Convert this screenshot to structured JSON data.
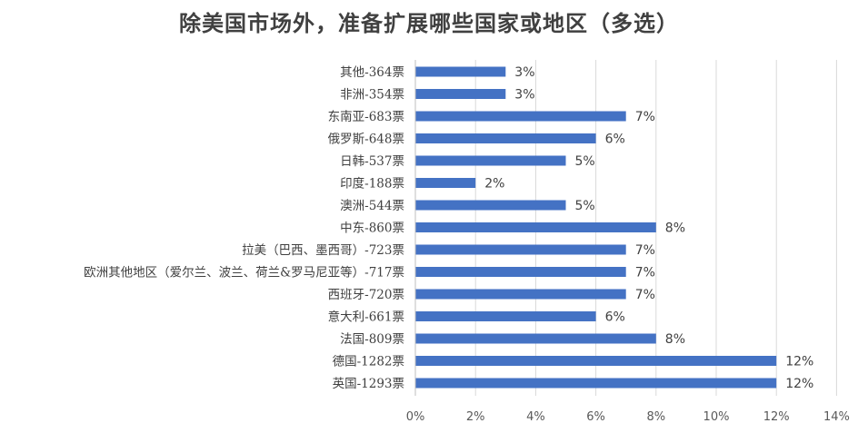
{
  "chart_data": {
    "type": "bar",
    "orientation": "horizontal",
    "title": "除美国市场外，准备扩展哪些国家或地区（多选）",
    "categories": [
      "其他-364票",
      "非洲-354票",
      "东南亚-683票",
      "俄罗斯-648票",
      "日韩-537票",
      "印度-188票",
      "澳洲-544票",
      "中东-860票",
      "拉美（巴西、墨西哥）-723票",
      "欧洲其他地区（爱尔兰、波兰、荷兰&罗马尼亚等）-717票",
      "西班牙-720票",
      "意大利-661票",
      "法国-809票",
      "德国-1282票",
      "英国-1293票"
    ],
    "values": [
      3,
      3,
      7,
      6,
      5,
      2,
      5,
      8,
      7,
      7,
      7,
      6,
      8,
      12,
      12
    ],
    "data_labels": [
      "3%",
      "3%",
      "7%",
      "6%",
      "5%",
      "2%",
      "5%",
      "8%",
      "7%",
      "7%",
      "7%",
      "6%",
      "8%",
      "12%",
      "12%"
    ],
    "x_ticks": [
      "0%",
      "2%",
      "4%",
      "6%",
      "8%",
      "10%",
      "12%",
      "14%"
    ],
    "xlim": [
      0,
      14
    ],
    "grid": "vertical",
    "bar_color": "#4472C4"
  }
}
